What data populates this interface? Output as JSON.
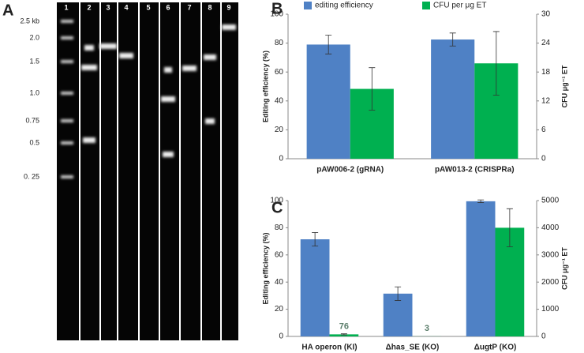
{
  "gel": {
    "label": "A",
    "lane_labels": [
      "1",
      "2",
      "3",
      "4",
      "5",
      "6",
      "7",
      "8",
      "9"
    ],
    "size_labels": [
      "2.5 kb",
      "2.0",
      "1.5",
      "1.0",
      "0.75",
      "0.5",
      "0. 25"
    ]
  },
  "chart_data": [
    {
      "type": "bar",
      "label": "B",
      "categories": [
        "pAW006-2 (gRNA)",
        "pAW013-2 (CRISPRa)"
      ],
      "ylabel": "Editing efficiency (%)",
      "y2label": "CFU μg⁻¹ ET",
      "ylim": [
        0,
        100
      ],
      "yticks": [
        0,
        20,
        40,
        60,
        80,
        100
      ],
      "y2lim": [
        0,
        30
      ],
      "y2ticks": [
        0,
        6,
        12,
        18,
        24,
        30
      ],
      "legend": "top",
      "series": [
        {
          "name": "editing efficiency",
          "color": "#4f81c5",
          "values": [
            79,
            82.5
          ],
          "errors": [
            6.5,
            4.5
          ]
        },
        {
          "name": "CFU per μg ET",
          "color": "#00b050",
          "axis": "y2",
          "values": [
            14.5,
            19.8
          ],
          "errors": [
            4.4,
            6.6
          ]
        }
      ]
    },
    {
      "type": "bar",
      "label": "C",
      "categories": [
        "HA operon (KI)",
        "Δhas_SE (KO)",
        "ΔugtP (KO)"
      ],
      "ylabel": "Editing efficiency (%)",
      "y2label": "CFU μg⁻¹ ET",
      "ylim": [
        0,
        100
      ],
      "yticks": [
        0,
        20,
        40,
        60,
        80,
        100
      ],
      "y2lim": [
        0,
        5000
      ],
      "y2ticks": [
        0,
        1000,
        2000,
        3000,
        4000,
        5000
      ],
      "series": [
        {
          "color": "#4f81c5",
          "values": [
            71.5,
            31.5,
            99.5
          ],
          "errors": [
            5,
            5,
            1
          ]
        },
        {
          "color": "#00b050",
          "axis": "y2",
          "values": [
            76,
            3,
            4000
          ],
          "errors": [
            20,
            0,
            700
          ],
          "value_labels": [
            "76",
            "3",
            null
          ]
        }
      ]
    }
  ]
}
